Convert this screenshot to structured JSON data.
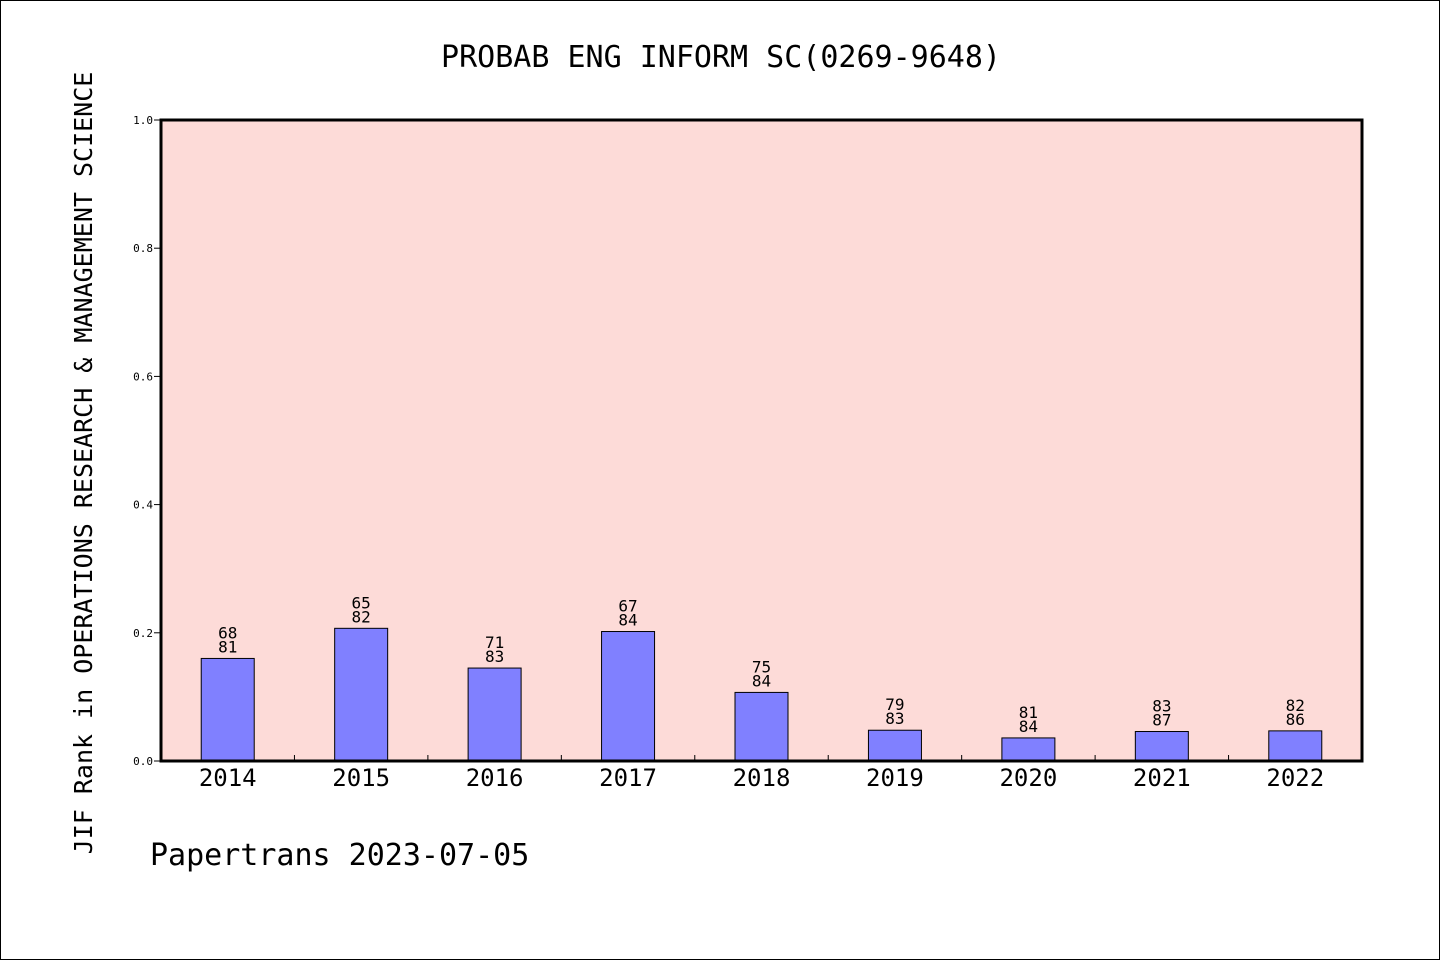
{
  "chart_data": {
    "type": "bar",
    "title": "PROBAB ENG INFORM SC(0269-9648)",
    "xlabel": "",
    "ylabel": "JIF Rank in OPERATIONS RESEARCH & MANAGEMENT SCIENCE",
    "ylim": [
      0,
      1.0
    ],
    "yticks": [
      "0.0",
      "0.2",
      "0.4",
      "0.6",
      "0.8",
      "1.0"
    ],
    "categories": [
      "2014",
      "2015",
      "2016",
      "2017",
      "2018",
      "2019",
      "2020",
      "2021",
      "2022"
    ],
    "values": [
      0.16,
      0.207,
      0.145,
      0.202,
      0.107,
      0.048,
      0.036,
      0.046,
      0.047
    ],
    "labels": [
      {
        "rank": "68",
        "total": "81"
      },
      {
        "rank": "65",
        "total": "82"
      },
      {
        "rank": "71",
        "total": "83"
      },
      {
        "rank": "67",
        "total": "84"
      },
      {
        "rank": "75",
        "total": "84"
      },
      {
        "rank": "79",
        "total": "83"
      },
      {
        "rank": "81",
        "total": "84"
      },
      {
        "rank": "83",
        "total": "87"
      },
      {
        "rank": "82",
        "total": "86"
      }
    ],
    "grid": false,
    "colors": {
      "plot_background": "#fddbd8",
      "bar_fill": "#8080ff",
      "bar_stroke": "#000000"
    }
  },
  "footer": {
    "credit": "Papertrans 2023-07-05"
  }
}
